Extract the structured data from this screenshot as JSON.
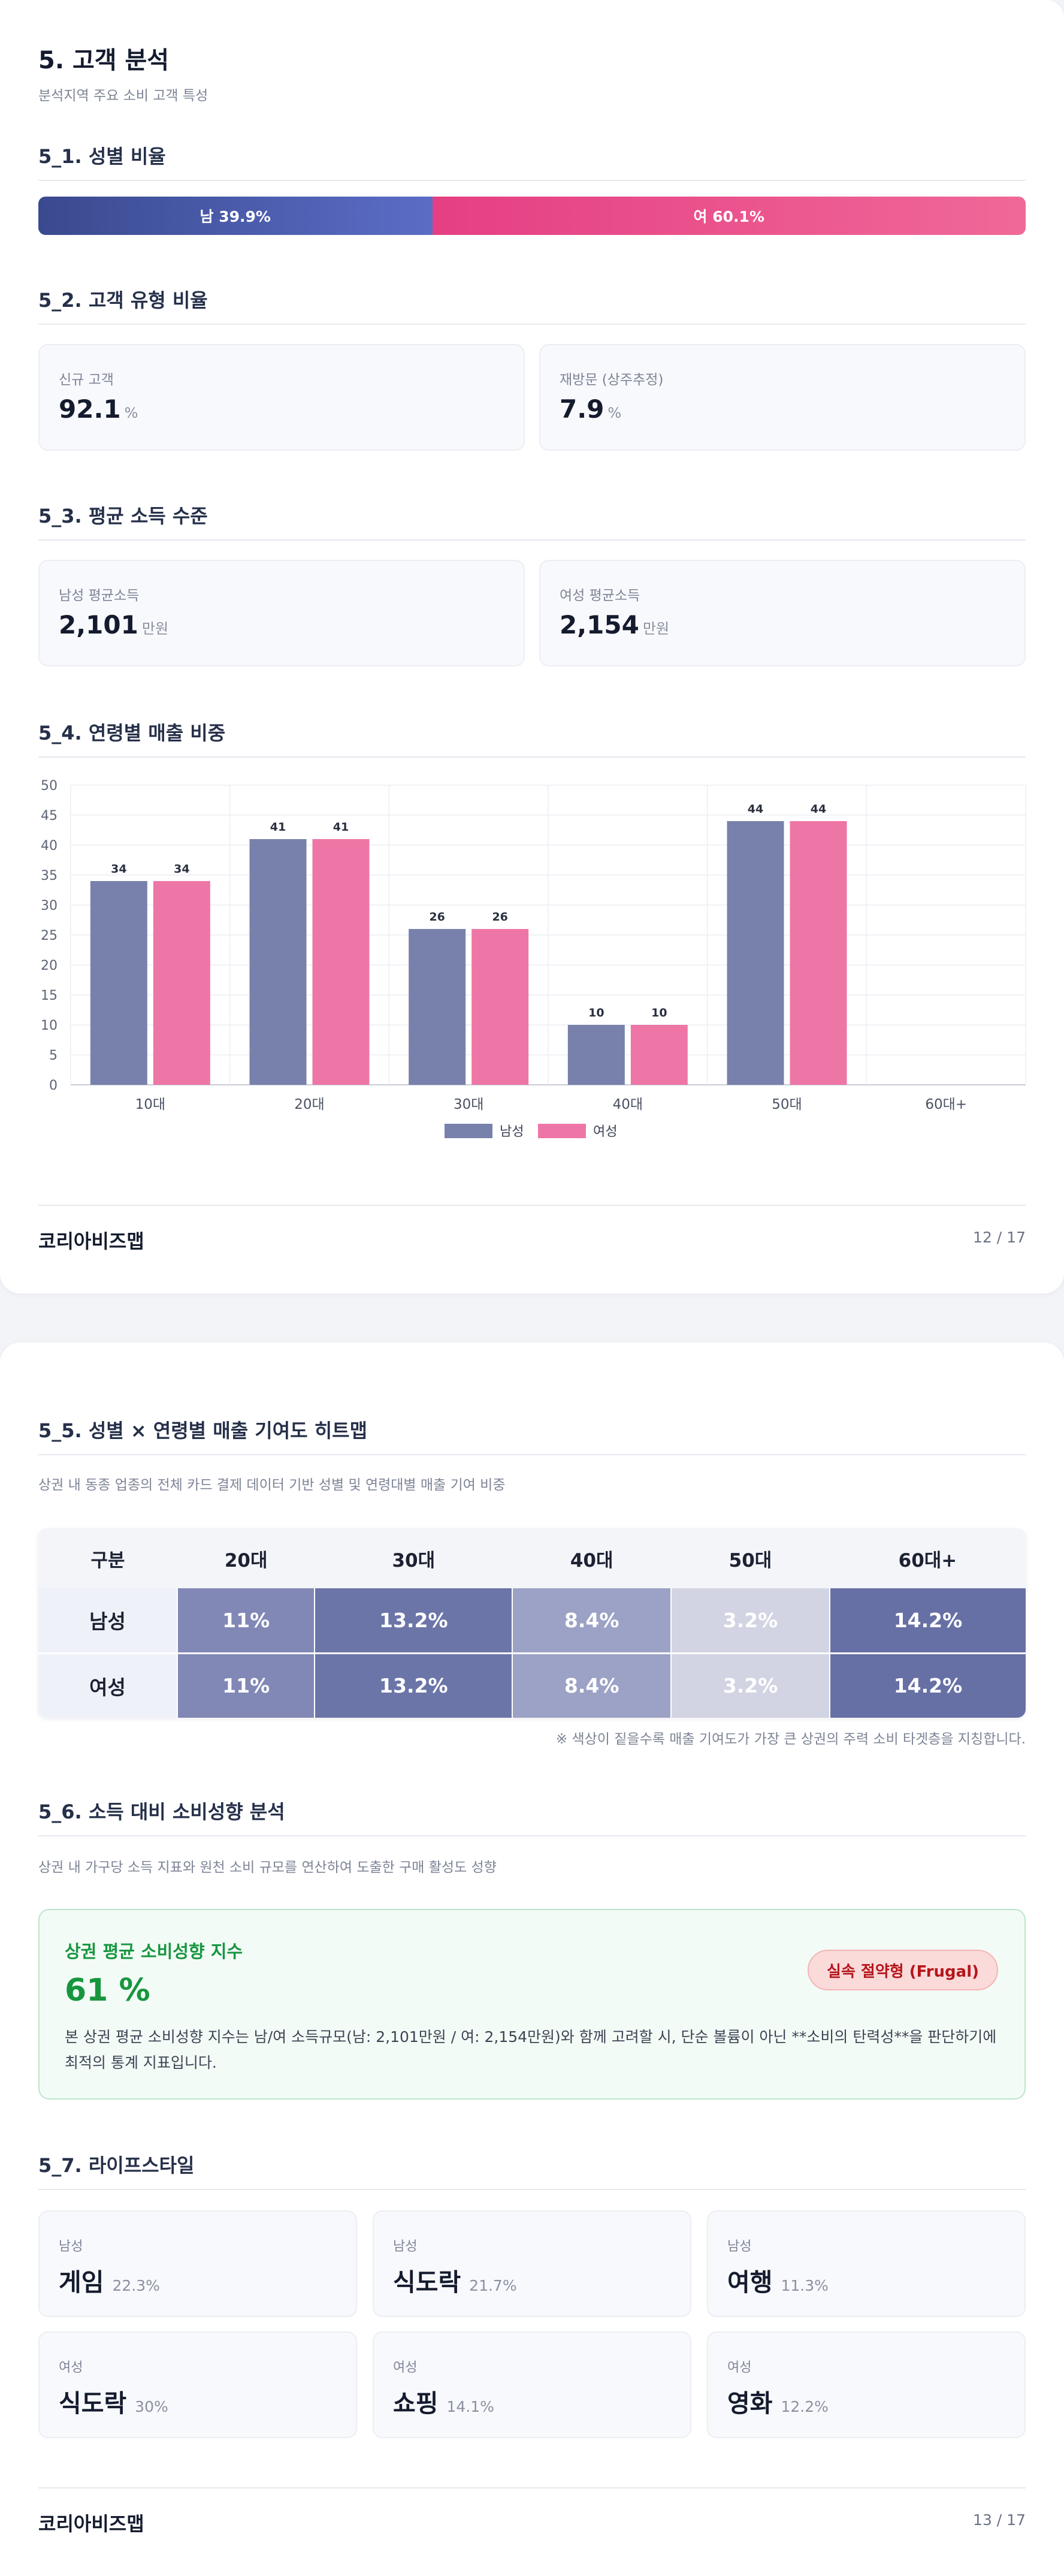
{
  "page1": {
    "title": "5. 고객 분석",
    "subtitle": "분석지역 주요 소비 고객 특성",
    "gender": {
      "heading": "5_1. 성별 비율",
      "male_label": "남 39.9%",
      "female_label": "여 60.1%",
      "male_pct": 39.9,
      "female_pct": 60.1,
      "colors": {
        "male": "#4a5aae",
        "female": "#ea4f8c"
      }
    },
    "customer_type": {
      "heading": "5_2. 고객 유형 비율",
      "cards": [
        {
          "label": "신규 고객",
          "value": "92.1",
          "unit": "%"
        },
        {
          "label": "재방문 (상주추정)",
          "value": "7.9",
          "unit": "%"
        }
      ]
    },
    "income": {
      "heading": "5_3. 평균 소득 수준",
      "cards": [
        {
          "label": "남성 평균소득",
          "value": "2,101",
          "unit": "만원"
        },
        {
          "label": "여성 평균소득",
          "value": "2,154",
          "unit": "만원"
        }
      ]
    },
    "age_sales": {
      "heading": "5_4. 연령별 매출 비중"
    },
    "footer": {
      "brand": "코리아비즈맵",
      "page": "12 / 17"
    }
  },
  "chart_data": {
    "type": "bar",
    "categories": [
      "10대",
      "20대",
      "30대",
      "40대",
      "50대",
      "60대+"
    ],
    "series": [
      {
        "name": "남성",
        "values": [
          34,
          41,
          26,
          10,
          44,
          null
        ],
        "labels": [
          "34",
          "41",
          "26",
          "10",
          "44",
          ""
        ],
        "color": "#7881ab"
      },
      {
        "name": "여성",
        "values": [
          34,
          41,
          26,
          10,
          44,
          null
        ],
        "labels": [
          "34",
          "41",
          "26",
          "10",
          "44",
          ""
        ],
        "color": "#ee76a6"
      }
    ],
    "yticks": [
      0,
      5,
      10,
      15,
      20,
      25,
      30,
      35,
      40,
      45,
      50
    ],
    "ylim": [
      0,
      50
    ],
    "grid": true,
    "legend": "bottom-center"
  },
  "page2": {
    "heatmap": {
      "heading": "5_5. 성별 × 연령별 매출 기여도 히트맵",
      "description": "상권 내 동종 업종의 전체 카드 결제 데이터 기반 성별 및 연령대별 매출 기여 비중",
      "columns": [
        "구분",
        "20대",
        "30대",
        "40대",
        "50대",
        "60대+"
      ],
      "rows": [
        {
          "label": "남성",
          "cells": [
            "11%",
            "13.2%",
            "8.4%",
            "3.2%",
            "14.2%"
          ]
        },
        {
          "label": "여성",
          "cells": [
            "11%",
            "13.2%",
            "8.4%",
            "3.2%",
            "14.2%"
          ]
        }
      ],
      "cell_colors": [
        "#8188b6",
        "#6c75a8",
        "#9ca2c5",
        "#d2d4e3",
        "#6770a5"
      ],
      "note": "※ 색상이 짙을수록 매출 기여도가 가장 큰 상권의 주력 소비 타겟층을 지칭합니다."
    },
    "spending": {
      "heading": "5_6. 소득 대비 소비성향 분석",
      "description": "상권 내 가구당 소득 지표와 원천 소비 규모를 연산하여 도출한 구매 활성도 성향",
      "box_title": "상권 평균 소비성향 지수",
      "value": "61 %",
      "badge": "실속 절약형 (Frugal)",
      "text": "본 상권 평균 소비성향 지수는 남/여 소득규모(남: 2,101만원 / 여: 2,154만원)와 함께 고려할 시, 단순 볼륨이 아닌 **소비의 탄력성**을 판단하기에 최적의 통계 지표입니다."
    },
    "lifestyle": {
      "heading": "5_7. 라이프스타일",
      "items": [
        {
          "gender": "남성",
          "category": "게임",
          "pct": "22.3%"
        },
        {
          "gender": "남성",
          "category": "식도락",
          "pct": "21.7%"
        },
        {
          "gender": "남성",
          "category": "여행",
          "pct": "11.3%"
        },
        {
          "gender": "여성",
          "category": "식도락",
          "pct": "30%"
        },
        {
          "gender": "여성",
          "category": "쇼핑",
          "pct": "14.1%"
        },
        {
          "gender": "여성",
          "category": "영화",
          "pct": "12.2%"
        }
      ]
    },
    "footer": {
      "brand": "코리아비즈맵",
      "page": "13 / 17"
    }
  }
}
